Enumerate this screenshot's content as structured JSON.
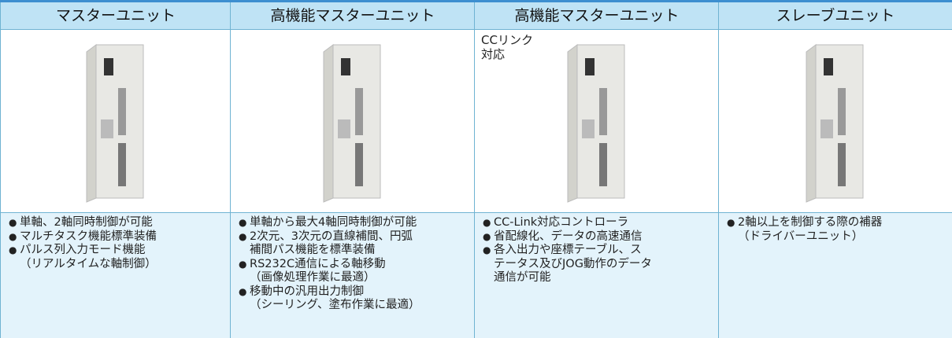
{
  "columns": [
    {
      "header": "マスターユニット",
      "note": [],
      "bullets": [
        {
          "lines": [
            "単軸、2軸同時制御が可能"
          ]
        },
        {
          "lines": [
            "マルチタスク機能標準装備"
          ]
        },
        {
          "lines": [
            "パルス列入力モード機能",
            "（リアルタイムな軸制御）"
          ]
        }
      ]
    },
    {
      "header": "高機能マスターユニット",
      "note": [],
      "bullets": [
        {
          "lines": [
            "単軸から最大4軸同時制御が可能"
          ]
        },
        {
          "lines": [
            "2次元、3次元の直線補間、円弧",
            "補間パス機能を標準装備"
          ]
        },
        {
          "lines": [
            "RS232C通信による軸移動",
            "（画像処理作業に最適）"
          ]
        },
        {
          "lines": [
            "移動中の汎用出力制御",
            "（シーリング、塗布作業に最適）"
          ]
        }
      ]
    },
    {
      "header": "高機能マスターユニット",
      "note": [
        "CCリンク",
        "対応"
      ],
      "bullets": [
        {
          "lines": [
            "CC-Link対応コントローラ"
          ]
        },
        {
          "lines": [
            "省配線化、データの高速通信"
          ]
        },
        {
          "lines": [
            "各入出力や座標テーブル、ス",
            "テータス及びJOG動作のデータ",
            "通信が可能"
          ]
        }
      ]
    },
    {
      "header": "スレーブユニット",
      "note": [],
      "bullets": [
        {
          "lines": [
            "2軸以上を制御する際の補器",
            "（ドライバーユニット）"
          ]
        }
      ]
    }
  ]
}
